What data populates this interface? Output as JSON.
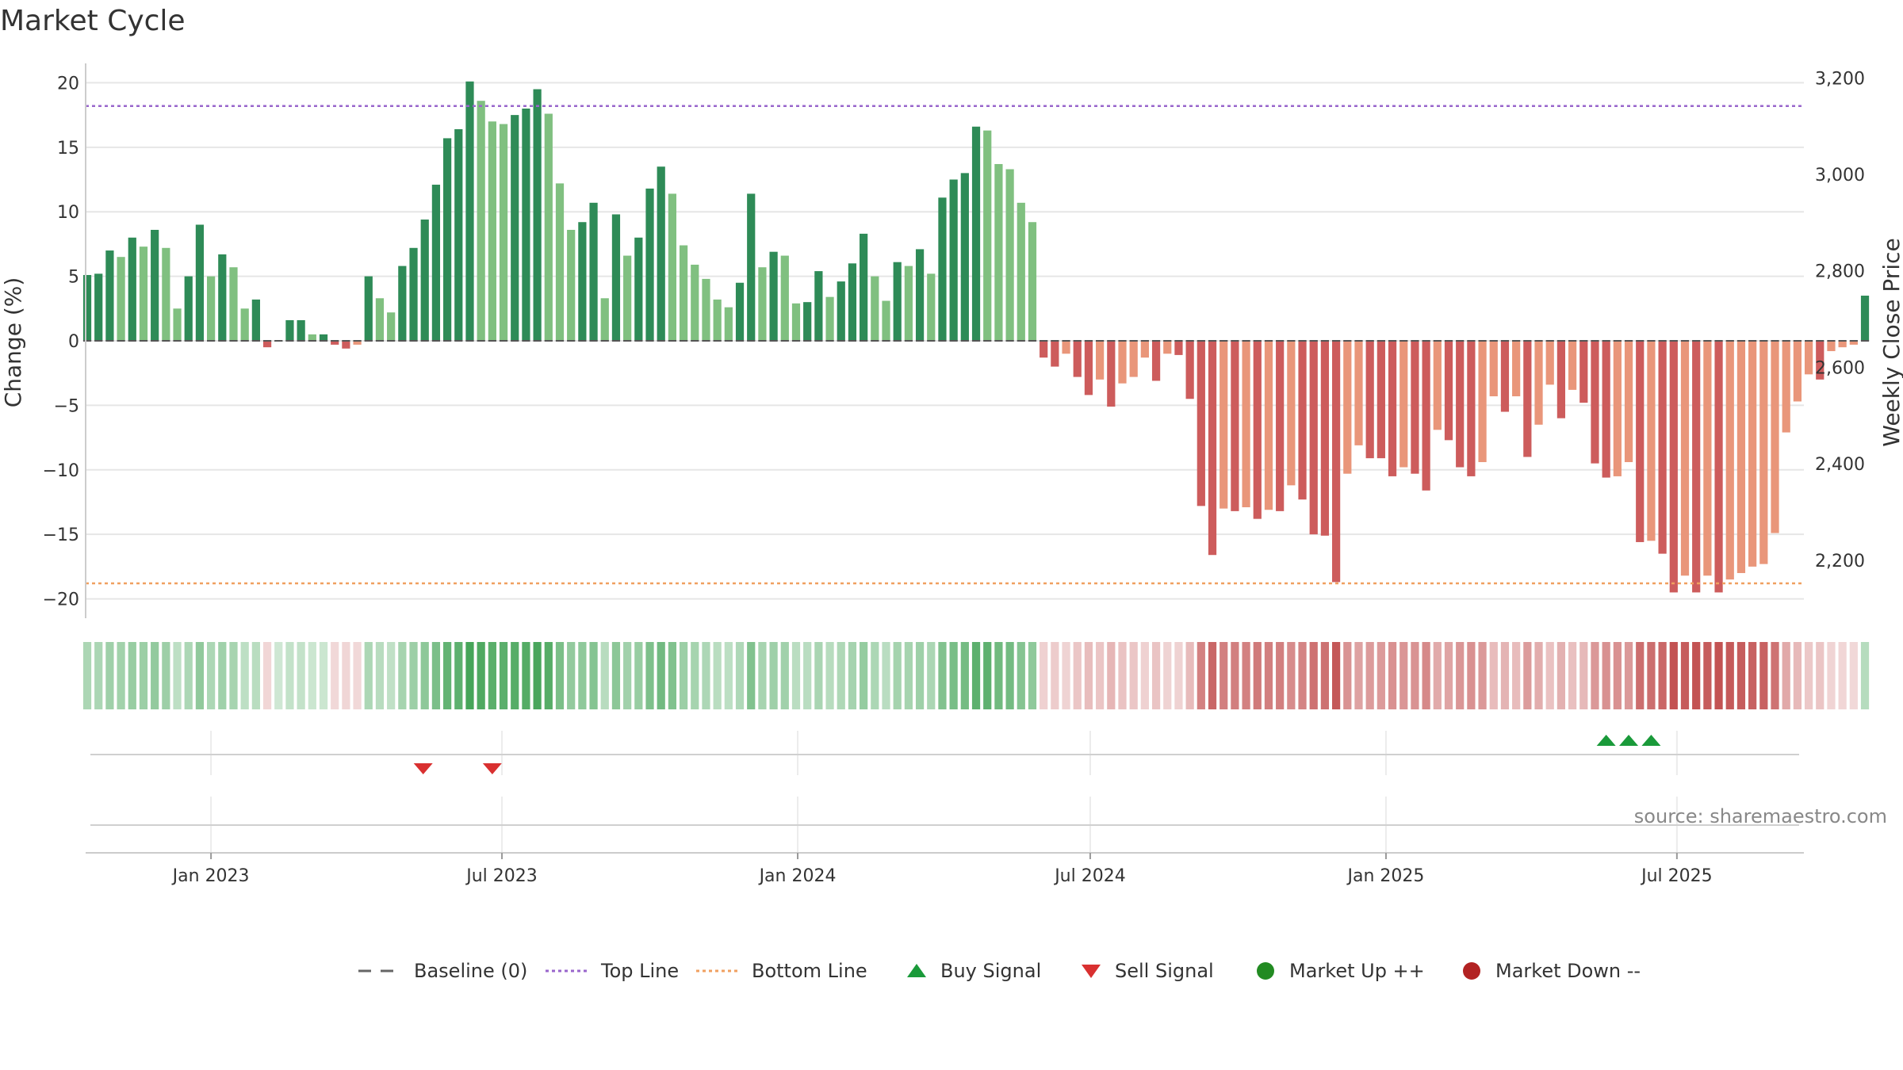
{
  "chart_data": {
    "type": "bar",
    "title": "Market Cycle",
    "ylabel_left": "Change (%)",
    "ylabel_right": "Weekly Close Price",
    "source": "source: sharemaestro.com",
    "ylim": [
      -21.5,
      21.5
    ],
    "yticks": [
      20,
      15,
      10,
      5,
      0,
      -5,
      -10,
      -15,
      -20
    ],
    "ytick_labels": [
      "20",
      "15",
      "10",
      "5",
      "0",
      "−5",
      "−10",
      "−15",
      "−20"
    ],
    "right_ylim": [
      2080,
      3230
    ],
    "right_yticks": [
      3200,
      3000,
      2800,
      2600,
      2400,
      2200
    ],
    "right_ytick_labels": [
      "3,200",
      "3,000",
      "2,800",
      "2,600",
      "2,400",
      "2,200"
    ],
    "xlim": [
      "2022-10-15",
      "2025-09-18"
    ],
    "xticks": [
      "2023-01-01",
      "2023-07-01",
      "2024-01-01",
      "2024-07-01",
      "2025-01-01",
      "2025-07-01"
    ],
    "xtick_labels": [
      "Jan 2023",
      "Jul 2023",
      "Jan 2024",
      "Jul 2024",
      "Jan 2025",
      "Jul 2025"
    ],
    "first_week": "2022-10-16",
    "week_days": 7,
    "values": [
      5.1,
      5.2,
      7,
      6.5,
      8,
      7.3,
      8.6,
      7.2,
      2.5,
      5,
      9,
      5,
      6.7,
      5.7,
      2.5,
      3.2,
      -0.5,
      0,
      1.6,
      1.6,
      0.5,
      0.5,
      -0.3,
      -0.6,
      -0.3,
      5,
      3.3,
      2.2,
      5.8,
      7.2,
      9.4,
      12.1,
      15.7,
      16.4,
      20.1,
      18.6,
      17,
      16.8,
      17.5,
      18,
      19.5,
      17.6,
      12.2,
      8.6,
      9.2,
      10.7,
      3.3,
      9.8,
      6.6,
      8,
      11.8,
      13.5,
      11.4,
      7.4,
      5.9,
      4.8,
      3.2,
      2.6,
      4.5,
      11.4,
      5.7,
      6.9,
      6.6,
      2.9,
      3,
      5.4,
      3.4,
      4.6,
      6,
      8.3,
      5,
      3.1,
      6.1,
      5.8,
      7.1,
      5.2,
      11.1,
      12.5,
      13,
      16.6,
      16.3,
      13.7,
      13.3,
      10.7,
      9.2,
      -1.3,
      -2,
      -1,
      -2.8,
      -4.2,
      -3,
      -5.1,
      -3.3,
      -2.8,
      -1.3,
      -3.1,
      -1,
      -1.1,
      -4.5,
      -12.8,
      -16.6,
      -13,
      -13.2,
      -12.9,
      -13.8,
      -13.1,
      -13.2,
      -11.2,
      -12.3,
      -15,
      -15.1,
      -18.7,
      -10.3,
      -8.1,
      -9.1,
      -9.1,
      -10.5,
      -9.8,
      -10.3,
      -11.6,
      -6.9,
      -7.7,
      -9.8,
      -10.5,
      -9.4,
      -4.3,
      -5.5,
      -4.3,
      -9,
      -6.5,
      -3.4,
      -6,
      -3.8,
      -4.8,
      -9.5,
      -10.6,
      -10.5,
      -9.4,
      -15.6,
      -15.5,
      -16.5,
      -19.5,
      -18.2,
      -19.5,
      -18.2,
      -19.5,
      -18.5,
      -18,
      -17.5,
      -17.3,
      -14.9,
      -7.1,
      -4.7,
      -2.6,
      -3,
      -0.8,
      -0.5,
      -0.3,
      3.5
    ],
    "reference_lines": [
      {
        "name": "Top Line",
        "value": 18.2,
        "color": "#9966cc",
        "style": "dot"
      },
      {
        "name": "Bottom Line",
        "value": -18.8,
        "color": "#f0a060",
        "style": "dot"
      }
    ],
    "signals": [
      {
        "type": "sell",
        "date": "2023-05-13"
      },
      {
        "type": "sell",
        "date": "2023-06-25"
      },
      {
        "type": "buy",
        "date": "2025-05-18"
      },
      {
        "type": "buy",
        "date": "2025-06-01"
      },
      {
        "type": "buy",
        "date": "2025-06-15"
      }
    ],
    "legend": [
      {
        "label": "Baseline (0)",
        "symbol": "dash",
        "color": "#666666"
      },
      {
        "label": "Top Line",
        "symbol": "dot-line",
        "color": "#9966cc"
      },
      {
        "label": "Bottom Line",
        "symbol": "dot-line",
        "color": "#f0a060"
      },
      {
        "label": "Buy Signal",
        "symbol": "triangle-up",
        "color": "#1a9a3a"
      },
      {
        "label": "Sell Signal",
        "symbol": "triangle-down",
        "color": "#d93030"
      },
      {
        "label": "Market Up ++",
        "symbol": "circle",
        "color": "#228b22"
      },
      {
        "label": "Market Down --",
        "symbol": "circle",
        "color": "#b22222"
      }
    ],
    "colors": {
      "up_strong": "#2e8b57",
      "up_light": "#80c080",
      "down_strong": "#cd5c5c",
      "down_light": "#e9967a",
      "baseline": "#555555",
      "grid": "#e6e6e6"
    },
    "legend_placement": "bottom-center",
    "grid": true
  }
}
